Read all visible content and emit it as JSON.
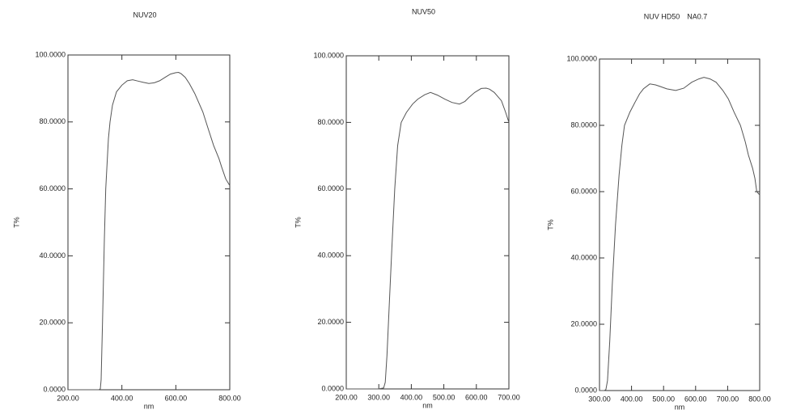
{
  "chart_data": [
    {
      "type": "line",
      "title": "NUV20",
      "xlabel": "nm",
      "ylabel": "T%",
      "x": [
        200,
        250,
        300,
        315,
        320,
        323,
        328,
        335,
        340,
        350,
        356,
        365,
        380,
        400,
        420,
        440,
        460,
        480,
        500,
        520,
        540,
        560,
        580,
        600,
        610,
        620,
        635,
        650,
        670,
        700,
        720,
        740,
        760,
        770,
        785,
        800
      ],
      "values": [
        0,
        0,
        0,
        0,
        0.3,
        3,
        20,
        45,
        60,
        75,
        80,
        85,
        89,
        91,
        92.3,
        92.6,
        92.2,
        91.8,
        91.5,
        91.7,
        92.3,
        93.3,
        94.3,
        94.7,
        94.8,
        94.4,
        93.3,
        91.5,
        88.5,
        83,
        78,
        73,
        69,
        66.5,
        63,
        61
      ],
      "color": "#555555",
      "xlim": [
        200,
        800
      ],
      "ylim": [
        0,
        100
      ],
      "xticks": [
        {
          "value": 200,
          "label": "200.00"
        },
        {
          "value": 400,
          "label": "400.00"
        },
        {
          "value": 600,
          "label": "600.00"
        },
        {
          "value": 800,
          "label": "800.00"
        }
      ],
      "yticks": [
        {
          "value": 0,
          "label": "0.0000"
        },
        {
          "value": 20,
          "label": "20.0000"
        },
        {
          "value": 40,
          "label": "40.0000"
        },
        {
          "value": 60,
          "label": "60.0000"
        },
        {
          "value": 80,
          "label": "80.0000"
        },
        {
          "value": 100,
          "label": "100.0000"
        }
      ]
    },
    {
      "type": "line",
      "title": "NUV50",
      "xlabel": "nm",
      "ylabel": "T%",
      "x": [
        200,
        250,
        300,
        315,
        320,
        325,
        332,
        340,
        349,
        358,
        369,
        385,
        404,
        420,
        441,
        459,
        480,
        503,
        525,
        548,
        565,
        577,
        595,
        615,
        630,
        640,
        655,
        677,
        690,
        700
      ],
      "values": [
        0,
        0,
        0,
        0.3,
        2,
        10,
        25,
        42,
        60,
        73,
        80,
        83,
        85.5,
        87,
        88.3,
        89,
        88.2,
        87,
        86,
        85.5,
        86.3,
        87.5,
        89,
        90.2,
        90.3,
        90,
        89,
        86.5,
        83,
        80
      ],
      "color": "#555555",
      "xlim": [
        200,
        700
      ],
      "ylim": [
        0,
        100
      ],
      "xticks": [
        {
          "value": 200,
          "label": "200.00"
        },
        {
          "value": 300,
          "label": "300.00"
        },
        {
          "value": 400,
          "label": "400.00"
        },
        {
          "value": 500,
          "label": "500.00"
        },
        {
          "value": 600,
          "label": "600.00"
        },
        {
          "value": 700,
          "label": "700.00"
        }
      ],
      "yticks": [
        {
          "value": 0,
          "label": "0.0000"
        },
        {
          "value": 20,
          "label": "20.0000"
        },
        {
          "value": 40,
          "label": "40.0000"
        },
        {
          "value": 60,
          "label": "60.0000"
        },
        {
          "value": 80,
          "label": "80.0000"
        },
        {
          "value": 100,
          "label": "100.0000"
        }
      ]
    },
    {
      "type": "line",
      "title": "NUV HD50　NA0.7",
      "xlabel": "nm",
      "ylabel": "T%",
      "x": [
        300,
        315,
        320,
        325,
        332,
        340,
        350,
        361,
        370,
        378,
        395,
        411,
        425,
        437,
        457,
        475,
        487,
        510,
        538,
        563,
        588,
        610,
        626,
        645,
        664,
        685,
        702,
        720,
        740,
        755,
        765,
        778,
        785,
        791,
        800
      ],
      "values": [
        0,
        0,
        0.3,
        3,
        15,
        32,
        50,
        65,
        74,
        80,
        84,
        87,
        89.5,
        91,
        92.5,
        92.2,
        91.8,
        91,
        90.5,
        91.2,
        93,
        94,
        94.5,
        94,
        93,
        90.5,
        88,
        84,
        80,
        75,
        71,
        67,
        64,
        60,
        59
      ],
      "color": "#555555",
      "xlim": [
        300,
        800
      ],
      "ylim": [
        0,
        100
      ],
      "xticks": [
        {
          "value": 300,
          "label": "300.00"
        },
        {
          "value": 400,
          "label": "400.00"
        },
        {
          "value": 500,
          "label": "500.00"
        },
        {
          "value": 600,
          "label": "600.00"
        },
        {
          "value": 700,
          "label": "700.00"
        },
        {
          "value": 800,
          "label": "800.00"
        }
      ],
      "yticks": [
        {
          "value": 0,
          "label": "0.0000"
        },
        {
          "value": 20,
          "label": "20.0000"
        },
        {
          "value": 40,
          "label": "40.0000"
        },
        {
          "value": 60,
          "label": "60.0000"
        },
        {
          "value": 80,
          "label": "80.0000"
        },
        {
          "value": 100,
          "label": "100.0000"
        }
      ]
    }
  ]
}
